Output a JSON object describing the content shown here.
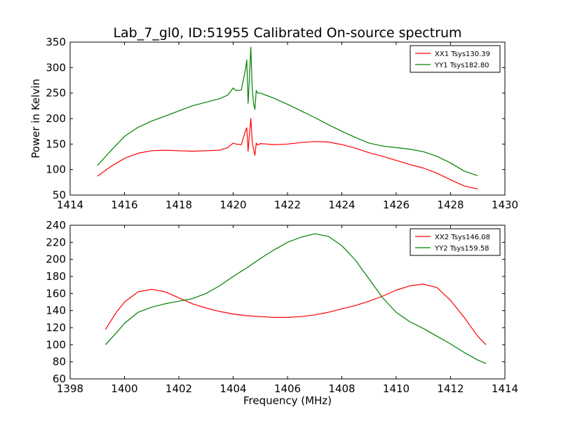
{
  "title": "Lab_7_gl0, ID:51955 Calibrated On-source spectrum",
  "chart_data": [
    {
      "type": "line",
      "xlabel": "",
      "ylabel": "Power in Kelvin",
      "xlim": [
        1414,
        1430
      ],
      "ylim": [
        50,
        350
      ],
      "xticks": [
        "1414",
        "1416",
        "1418",
        "1420",
        "1422",
        "1424",
        "1426",
        "1428",
        "1430"
      ],
      "yticks": [
        "50",
        "100",
        "150",
        "200",
        "250",
        "300",
        "350"
      ],
      "grid": false,
      "legend_position": "top-right",
      "series": [
        {
          "name": "XX1 Tsys130.39",
          "color": "#ff0000",
          "x": [
            1415.0,
            1415.5,
            1416.0,
            1416.5,
            1417.0,
            1417.5,
            1418.0,
            1418.5,
            1419.0,
            1419.5,
            1419.8,
            1420.0,
            1420.1,
            1420.3,
            1420.45,
            1420.5,
            1420.55,
            1420.6,
            1420.65,
            1420.7,
            1420.75,
            1420.8,
            1420.85,
            1420.9,
            1421.0,
            1421.5,
            1422.0,
            1422.5,
            1423.0,
            1423.5,
            1424.0,
            1424.5,
            1425.0,
            1425.5,
            1426.0,
            1426.5,
            1427.0,
            1427.5,
            1428.0,
            1428.5,
            1429.0
          ],
          "y": [
            87,
            106,
            122,
            132,
            137,
            138,
            137,
            136,
            137,
            138,
            143,
            152,
            150,
            149,
            175,
            182,
            136,
            170,
            200,
            155,
            140,
            128,
            152,
            148,
            151,
            149,
            150,
            153,
            155,
            154,
            149,
            142,
            133,
            126,
            118,
            110,
            103,
            93,
            80,
            68,
            62
          ]
        },
        {
          "name": "YY1 Tsys182.80",
          "color": "#008000",
          "x": [
            1415.0,
            1415.5,
            1416.0,
            1416.5,
            1417.0,
            1417.5,
            1418.0,
            1418.5,
            1419.0,
            1419.5,
            1419.8,
            1420.0,
            1420.1,
            1420.3,
            1420.45,
            1420.5,
            1420.55,
            1420.6,
            1420.65,
            1420.7,
            1420.75,
            1420.8,
            1420.85,
            1420.9,
            1421.0,
            1421.5,
            1422.0,
            1422.5,
            1423.0,
            1423.5,
            1424.0,
            1424.5,
            1425.0,
            1425.5,
            1426.0,
            1426.5,
            1427.0,
            1427.5,
            1428.0,
            1428.5,
            1429.0
          ],
          "y": [
            108,
            137,
            165,
            183,
            195,
            205,
            215,
            225,
            232,
            239,
            246,
            260,
            255,
            256,
            295,
            315,
            230,
            280,
            340,
            260,
            230,
            218,
            255,
            250,
            250,
            240,
            228,
            215,
            202,
            188,
            175,
            163,
            152,
            146,
            143,
            140,
            135,
            126,
            113,
            97,
            88
          ]
        }
      ]
    },
    {
      "type": "line",
      "xlabel": "Frequency (MHz)",
      "ylabel": "",
      "xlim": [
        1398,
        1414
      ],
      "ylim": [
        60,
        240
      ],
      "xticks": [
        "1398",
        "1400",
        "1402",
        "1404",
        "1406",
        "1408",
        "1410",
        "1412",
        "1414"
      ],
      "yticks": [
        "60",
        "80",
        "100",
        "120",
        "140",
        "160",
        "180",
        "200",
        "220",
        "240"
      ],
      "grid": false,
      "legend_position": "top-right",
      "series": [
        {
          "name": "XX2 Tsys146.08",
          "color": "#ff0000",
          "x": [
            1399.3,
            1399.7,
            1400.0,
            1400.5,
            1401.0,
            1401.5,
            1402.0,
            1402.5,
            1403.0,
            1403.5,
            1404.0,
            1404.5,
            1405.0,
            1405.5,
            1406.0,
            1406.5,
            1407.0,
            1407.5,
            1408.0,
            1408.5,
            1409.0,
            1409.5,
            1410.0,
            1410.5,
            1411.0,
            1411.5,
            1412.0,
            1412.5,
            1413.0,
            1413.3
          ],
          "y": [
            118,
            138,
            150,
            162,
            165,
            162,
            155,
            148,
            143,
            139,
            136,
            134,
            133,
            132,
            132,
            133,
            135,
            138,
            142,
            146,
            151,
            157,
            164,
            169,
            171,
            167,
            152,
            132,
            110,
            100
          ]
        },
        {
          "name": "YY2 Tsys159.58",
          "color": "#008000",
          "x": [
            1399.3,
            1399.7,
            1400.0,
            1400.5,
            1401.0,
            1401.5,
            1402.0,
            1402.5,
            1403.0,
            1403.5,
            1404.0,
            1404.5,
            1405.0,
            1405.5,
            1406.0,
            1406.5,
            1407.0,
            1407.5,
            1408.0,
            1408.5,
            1409.0,
            1409.5,
            1410.0,
            1410.5,
            1411.0,
            1411.5,
            1412.0,
            1412.5,
            1413.0,
            1413.3
          ],
          "y": [
            100,
            114,
            125,
            138,
            144,
            148,
            151,
            154,
            160,
            169,
            180,
            190,
            201,
            211,
            220,
            226,
            230,
            227,
            216,
            199,
            177,
            155,
            138,
            127,
            119,
            110,
            101,
            91,
            82,
            78
          ]
        }
      ]
    }
  ]
}
